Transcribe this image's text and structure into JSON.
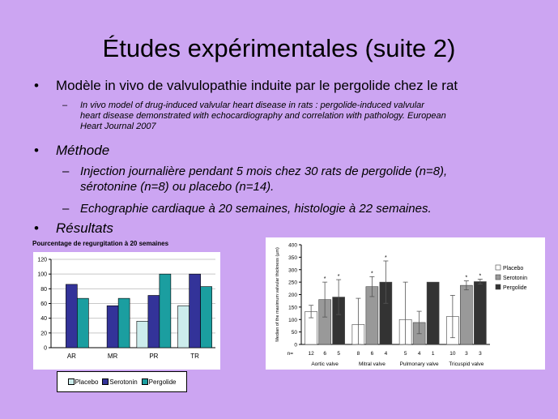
{
  "slide": {
    "title": "Études expérimentales (suite 2)",
    "bullet1": "Modèle in vivo de valvulopathie induite par le pergolide chez le rat",
    "ref_lines": [
      "In vivo model of drug-induced valvular heart disease in rats : pergolide-induced valvular",
      "heart disease demonstrated with echocardiography and correlation with pathology. European",
      "Heart Journal 2007"
    ],
    "bullet2": "Méthode",
    "method1_lines": [
      "Injection journalière pendant 5 mois chez 30 rats de pergolide (n=8),",
      "sérotonine (n=8) ou placebo (n=14)."
    ],
    "method2": "Echographie cardiaque à 20 semaines, histologie à 22 semaines.",
    "bullet3": "Résultats",
    "bullet_glyph": "•",
    "dash_glyph": "–"
  },
  "chart_data": [
    {
      "type": "bar",
      "title": "Pourcentage de regurgitation à 20 semaines",
      "categories": [
        "AR",
        "MR",
        "PR",
        "TR"
      ],
      "series": [
        {
          "name": "Placebo",
          "values": [
            0,
            0,
            36,
            57
          ]
        },
        {
          "name": "Serotonin",
          "values": [
            86,
            57,
            71,
            100
          ]
        },
        {
          "name": "Pergolide",
          "values": [
            67,
            67,
            100,
            83
          ]
        }
      ],
      "ylim": [
        0,
        120
      ],
      "yticks": [
        "0",
        "20",
        "40",
        "60",
        "80",
        "100",
        "120"
      ],
      "colors": [
        "#ccecec",
        "#333399",
        "#1b9ea0"
      ],
      "grid": true,
      "legend_position": "bottom"
    },
    {
      "type": "bar",
      "ylabel": "Median of the maximum valvular thickness (µm)",
      "categories": [
        "Aortic valve",
        "Mitral valve",
        "Pulmonary valve",
        "Tricuspid valve"
      ],
      "series": [
        {
          "name": "Placebo",
          "values": [
            132,
            80,
            100,
            112
          ],
          "err": [
            25,
            105,
            150,
            85
          ]
        },
        {
          "name": "Serotonin",
          "values": [
            180,
            232,
            88,
            237
          ],
          "err": [
            70,
            40,
            45,
            18
          ]
        },
        {
          "name": "Pergolide",
          "values": [
            190,
            250,
            250,
            252
          ],
          "err": [
            70,
            85,
            0,
            10
          ]
        }
      ],
      "n_label": "n=",
      "n_values": [
        [
          "12",
          "6",
          "5"
        ],
        [
          "8",
          "6",
          "4"
        ],
        [
          "5",
          "4",
          "1"
        ],
        [
          "10",
          "3",
          "3"
        ]
      ],
      "stars": [
        [
          false,
          true,
          true
        ],
        [
          false,
          true,
          true
        ],
        [
          false,
          false,
          false
        ],
        [
          false,
          true,
          true
        ]
      ],
      "star_glyph": "*",
      "ylim": [
        0,
        400
      ],
      "yticks": [
        "0",
        "50",
        "100",
        "150",
        "200",
        "250",
        "300",
        "350",
        "400"
      ],
      "colors": [
        "#ffffff",
        "#999999",
        "#333333"
      ],
      "legend_position": "right"
    }
  ]
}
